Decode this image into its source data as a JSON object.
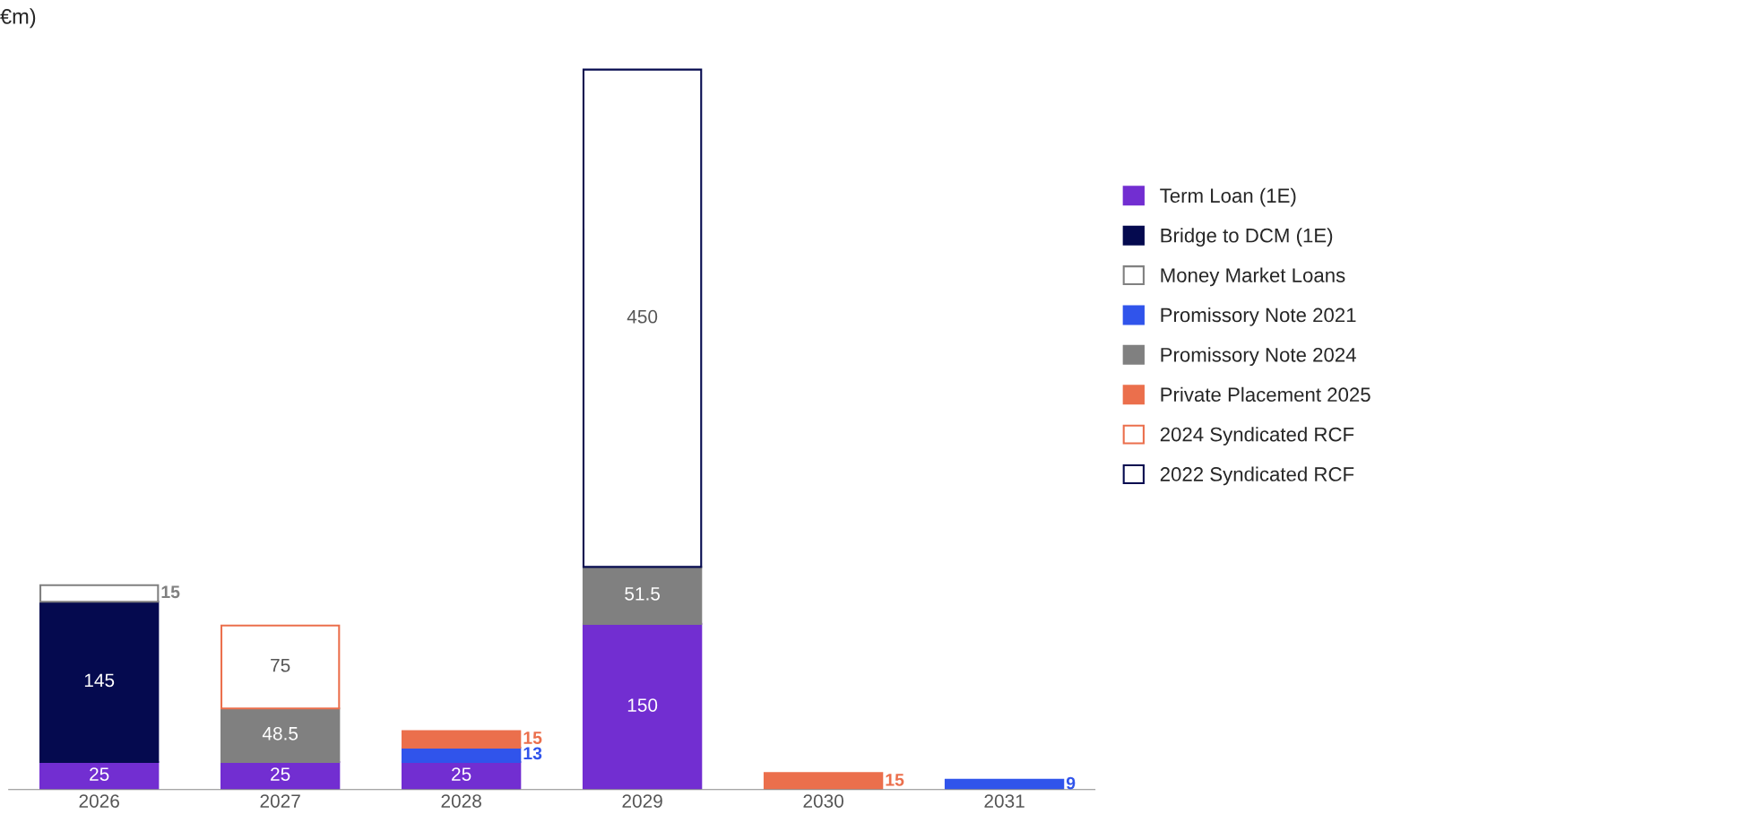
{
  "chart_data": {
    "type": "bar",
    "title": "€m)",
    "stacked": true,
    "data_labels": true,
    "legend": "right",
    "grid": false,
    "categories": [
      "2026",
      "2027",
      "2028",
      "2029",
      "2030",
      "2031"
    ],
    "series": [
      {
        "name": "Term Loan (1E)",
        "color": "#722ed1",
        "values": [
          25,
          25,
          25,
          150,
          null,
          null
        ]
      },
      {
        "name": "Bridge to DCM (1E)",
        "color": "#050a4f",
        "values": [
          145,
          null,
          null,
          null,
          null,
          null
        ]
      },
      {
        "name": "Money Market Loans",
        "color": "#808080",
        "line_style": "solid",
        "values": [
          15,
          null,
          null,
          null,
          null,
          null
        ]
      },
      {
        "name": "Promissory Note 2021",
        "color": "#3054eb",
        "values": [
          null,
          null,
          13,
          null,
          null,
          9
        ]
      },
      {
        "name": "Promissory Note 2024",
        "color": "#808080",
        "values": [
          null,
          48.5,
          null,
          51.5,
          null,
          null
        ]
      },
      {
        "name": "Private Placement 2025",
        "color": "#eb6f4c",
        "values": [
          null,
          null,
          15,
          null,
          15,
          null
        ]
      },
      {
        "name": "2024 Syndicated RCF",
        "color": "#eb6f4c",
        "line_style": "solid",
        "values": [
          null,
          75,
          null,
          null,
          null,
          null
        ]
      },
      {
        "name": "2022 Syndicated RCF",
        "color": "#050a4f",
        "line_style": "solid",
        "values": [
          null,
          null,
          null,
          450,
          null,
          null
        ]
      }
    ]
  }
}
